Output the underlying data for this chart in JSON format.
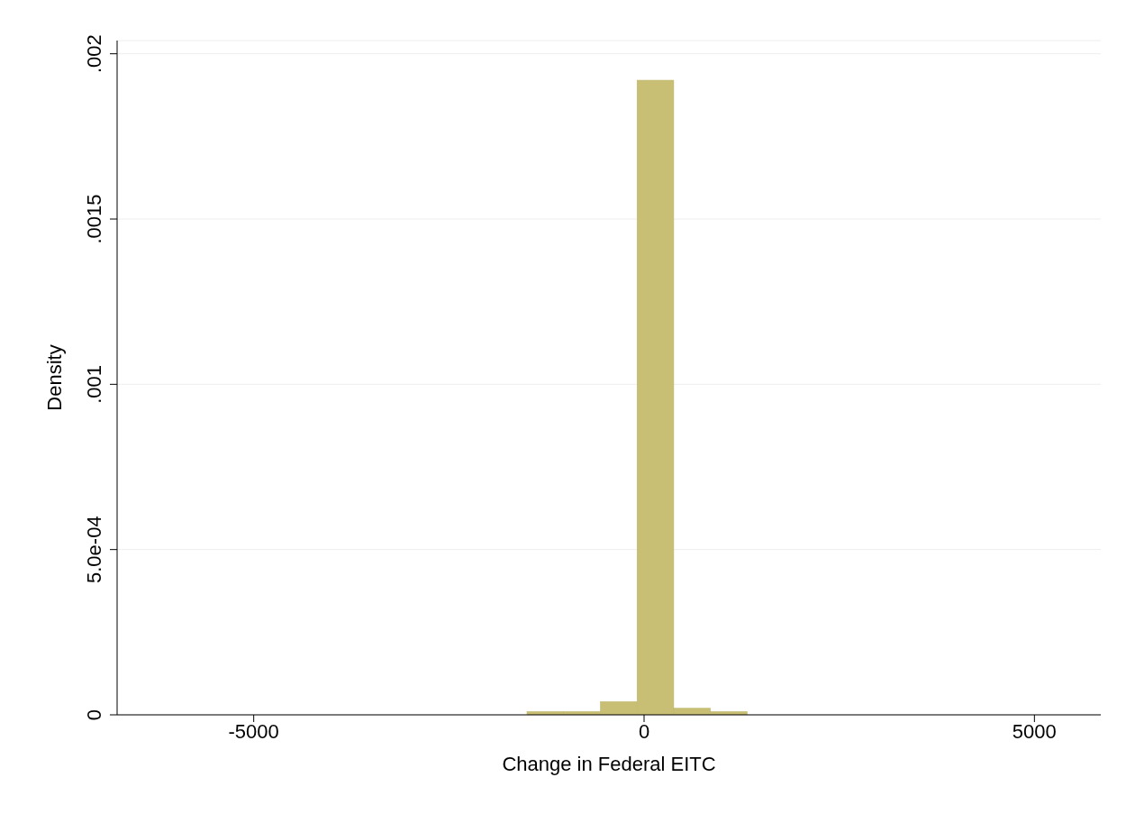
{
  "chart_data": {
    "type": "histogram",
    "xlabel": "Change in Federal EITC",
    "ylabel": "Density",
    "bins": [
      -6200,
      -5730,
      -5260,
      -4790,
      -4320,
      -3850,
      -3380,
      -2910,
      -2440,
      -1970,
      -1500,
      -1030,
      -560,
      -90,
      380,
      850,
      1320,
      1790,
      2260,
      2730,
      3200,
      3670,
      4140,
      4610,
      5080,
      5550,
      6020
    ],
    "values": [
      0,
      0,
      0,
      0,
      0,
      0,
      0,
      0,
      0,
      0,
      1e-05,
      1e-05,
      4e-05,
      0.00192,
      2e-05,
      1e-05,
      0,
      0,
      0,
      0,
      0,
      0,
      0,
      0,
      0,
      0
    ],
    "color": "#c9bf74",
    "xlim": [
      -6750,
      5850
    ],
    "xticks": [
      -5000,
      0,
      5000
    ],
    "ylim": [
      0,
      0.00204
    ],
    "yticks": [
      0,
      {
        "value": 0.0005,
        "label": "5.0e-04"
      },
      {
        "value": 0.001,
        "label": ".001"
      },
      {
        "value": 0.0015,
        "label": ".0015"
      },
      {
        "value": 0.002,
        "label": ".002"
      }
    ],
    "grid": "y"
  }
}
